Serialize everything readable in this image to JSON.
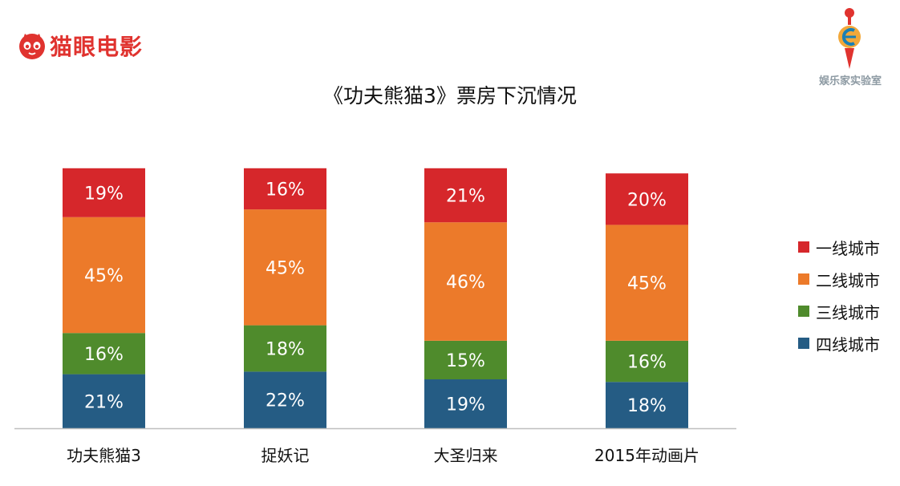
{
  "brand": {
    "name": "猫眼电影",
    "icon": "cat-face-icon",
    "color": "#e0332f"
  },
  "watermark": {
    "name": "娱乐家实验室",
    "icon": "ent-lab-logo"
  },
  "title": "《功夫熊猫3》票房下沉情况",
  "chart_data": {
    "type": "bar",
    "stacked": true,
    "categories": [
      "功夫熊猫3",
      "捉妖记",
      "大圣归来",
      "2015年动画片"
    ],
    "series": [
      {
        "name": "四线城市",
        "color": "#255c84",
        "values": [
          21,
          22,
          19,
          18
        ]
      },
      {
        "name": "三线城市",
        "color": "#4f8b2c",
        "values": [
          16,
          18,
          15,
          16
        ]
      },
      {
        "name": "二线城市",
        "color": "#ec7a2a",
        "values": [
          45,
          45,
          46,
          45
        ]
      },
      {
        "name": "一线城市",
        "color": "#d6272b",
        "values": [
          19,
          16,
          21,
          20
        ]
      }
    ],
    "value_suffix": "%",
    "legend_position": "right",
    "legend_order": [
      "一线城市",
      "二线城市",
      "三线城市",
      "四线城市"
    ],
    "grid": false
  }
}
